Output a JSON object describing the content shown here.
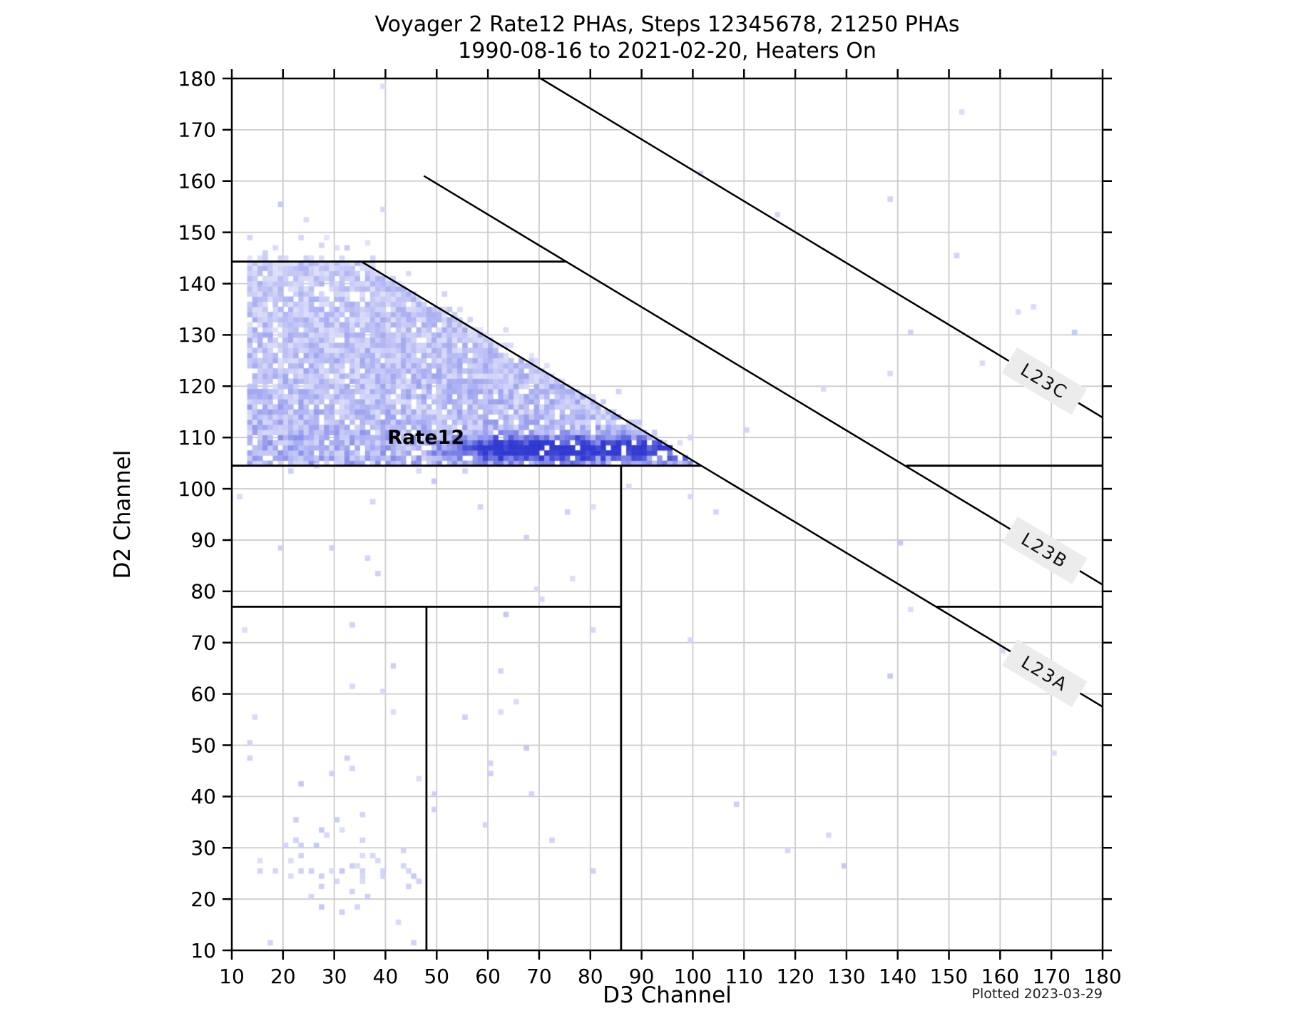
{
  "chart_data": {
    "type": "heatmap",
    "title_line1": "Voyager 2 Rate12 PHAs, Steps 12345678, 21250 PHAs",
    "title_line2": "1990-08-16 to 2021-02-20, Heaters On",
    "xlabel": "D3 Channel",
    "ylabel": "D2 Channel",
    "credit": "Plotted 2023-03-29",
    "annotation": {
      "text": "Rate12",
      "x": 47.9,
      "y": 110.1
    },
    "x_range": [
      10,
      180
    ],
    "y_range": [
      10,
      180
    ],
    "x_ticks": [
      10,
      20,
      30,
      40,
      50,
      60,
      70,
      80,
      90,
      100,
      110,
      120,
      130,
      140,
      150,
      160,
      170,
      180
    ],
    "y_ticks": [
      10,
      20,
      30,
      40,
      50,
      60,
      70,
      80,
      90,
      100,
      110,
      120,
      130,
      140,
      150,
      160,
      170,
      180
    ],
    "grid": true,
    "legend": "none",
    "colors": {
      "grid": "#cccccc",
      "spine": "#000000",
      "region_line": "#000000",
      "label_bg": "#ececec",
      "label_text": "#111111",
      "scatter_base": "#d8daf7",
      "ramp": [
        [
          236,
          237,
          252
        ],
        [
          158,
          164,
          240
        ],
        [
          34,
          44,
          206
        ]
      ]
    },
    "region_segments": [
      {
        "name": "upper-left-horizontal",
        "x1": 10,
        "y1": 144.3,
        "x2": 75.3,
        "y2": 144.3
      },
      {
        "name": "mid-left-horizontal",
        "x1": 10,
        "y1": 104.5,
        "x2": 101.6,
        "y2": 104.5
      },
      {
        "name": "mid-right-horizontal",
        "x1": 141.7,
        "y1": 104.5,
        "x2": 180,
        "y2": 104.5
      },
      {
        "name": "low-left-horizontal",
        "x1": 10,
        "y1": 77,
        "x2": 86,
        "y2": 77
      },
      {
        "name": "low-right-horizontal",
        "x1": 147.5,
        "y1": 77,
        "x2": 180,
        "y2": 77
      },
      {
        "name": "vertical-48",
        "x1": 48,
        "y1": 10,
        "x2": 48,
        "y2": 77
      },
      {
        "name": "vertical-86",
        "x1": 86,
        "y1": 10,
        "x2": 86,
        "y2": 104.5
      }
    ],
    "branch_lines": [
      {
        "label": "L23C",
        "x1": 70.3,
        "y1": 180,
        "x2": 180,
        "y2": 113.9,
        "label_x": 168.6,
        "label_y": 121,
        "label_angle_deg": 31
      },
      {
        "label": "L23B",
        "x1": 47.5,
        "y1": 161,
        "x2": 180,
        "y2": 81.3,
        "label_x": 168.7,
        "label_y": 88,
        "label_angle_deg": 31
      },
      {
        "label": "L23A",
        "x1": 35.3,
        "y1": 144.3,
        "x2": 180,
        "y2": 57.5,
        "label_x": 168.7,
        "label_y": 64,
        "label_angle_deg": 31
      }
    ],
    "histogram_region": {
      "comment_visible_structure": "dense 1-channel-bin 2D histogram, x 13-100, y 104.5-144.3, clipped above by line through (35.3,144.3) slope -0.6, sparse fringe above edges, dark ridge near y=108 for x 55-98, tip at (100,104.5)",
      "x_min": 13,
      "x_max": 100,
      "y_min": 104.5,
      "y_max": 144.3,
      "diag_x0": 35.3,
      "diag_y0": 144.3,
      "diag_slope": -0.6,
      "ridge_y": 107.8,
      "ridge_x_start": 48,
      "fill_probability": 0.9,
      "seed": 20230329
    },
    "scatter_points": [
      [
        39,
        178
      ],
      [
        152,
        173
      ],
      [
        101,
        161
      ],
      [
        138,
        156
      ],
      [
        19,
        155
      ],
      [
        39,
        154
      ],
      [
        116,
        153
      ],
      [
        24,
        152
      ],
      [
        27,
        147
      ],
      [
        151,
        145
      ],
      [
        166,
        135
      ],
      [
        163,
        134
      ],
      [
        142,
        130
      ],
      [
        174,
        130
      ],
      [
        156,
        124
      ],
      [
        138,
        122
      ],
      [
        125,
        119
      ],
      [
        110,
        111
      ],
      [
        26,
        104
      ],
      [
        21,
        103
      ],
      [
        46,
        103
      ],
      [
        55,
        103
      ],
      [
        49,
        101
      ],
      [
        87,
        100
      ],
      [
        11,
        98
      ],
      [
        99,
        98
      ],
      [
        37,
        97
      ],
      [
        58,
        96
      ],
      [
        80,
        96
      ],
      [
        75,
        95
      ],
      [
        104,
        95
      ],
      [
        140,
        89
      ],
      [
        19,
        88
      ],
      [
        29,
        88
      ],
      [
        36,
        86
      ],
      [
        67,
        90
      ],
      [
        38,
        83
      ],
      [
        76,
        82
      ],
      [
        69,
        80
      ],
      [
        70,
        78
      ],
      [
        63,
        75
      ],
      [
        142,
        76
      ],
      [
        12,
        72
      ],
      [
        33,
        73
      ],
      [
        80,
        72
      ],
      [
        99,
        70
      ],
      [
        160,
        68
      ],
      [
        41,
        65
      ],
      [
        62,
        64
      ],
      [
        138,
        63
      ],
      [
        33,
        61
      ],
      [
        39,
        60
      ],
      [
        65,
        58
      ],
      [
        41,
        56
      ],
      [
        55,
        55
      ],
      [
        14,
        55
      ],
      [
        62,
        56
      ],
      [
        13,
        50
      ],
      [
        67,
        49
      ],
      [
        170,
        48
      ],
      [
        13,
        47
      ],
      [
        32,
        47
      ],
      [
        33,
        45
      ],
      [
        29,
        44
      ],
      [
        60,
        46
      ],
      [
        60,
        44
      ],
      [
        46,
        43
      ],
      [
        23,
        42
      ],
      [
        68,
        40
      ],
      [
        49,
        40
      ],
      [
        108,
        38
      ],
      [
        49,
        37
      ],
      [
        35,
        36
      ],
      [
        22,
        35
      ],
      [
        30,
        35
      ],
      [
        59,
        34
      ],
      [
        27,
        33
      ],
      [
        31,
        33
      ],
      [
        28,
        32
      ],
      [
        126,
        32
      ],
      [
        72,
        31
      ],
      [
        35,
        31
      ],
      [
        22,
        31
      ],
      [
        23,
        30
      ],
      [
        20,
        30
      ],
      [
        26,
        30
      ],
      [
        118,
        29
      ],
      [
        43,
        29
      ],
      [
        23,
        28
      ],
      [
        37,
        28
      ],
      [
        38,
        27
      ],
      [
        35,
        28
      ],
      [
        15,
        27
      ],
      [
        21,
        27
      ],
      [
        129,
        26
      ],
      [
        33,
        26
      ],
      [
        43,
        26
      ],
      [
        34,
        26
      ],
      [
        15,
        25
      ],
      [
        18,
        25
      ],
      [
        23,
        25
      ],
      [
        25,
        25
      ],
      [
        29,
        25
      ],
      [
        31,
        25
      ],
      [
        35,
        25
      ],
      [
        39,
        25
      ],
      [
        44,
        25
      ],
      [
        80,
        25
      ],
      [
        21,
        24
      ],
      [
        27,
        24
      ],
      [
        35,
        24
      ],
      [
        39,
        24
      ],
      [
        45,
        24
      ],
      [
        30,
        23
      ],
      [
        35,
        23
      ],
      [
        46,
        23
      ],
      [
        27,
        22
      ],
      [
        44,
        22
      ],
      [
        33,
        21
      ],
      [
        36,
        20
      ],
      [
        25,
        20
      ],
      [
        27,
        18
      ],
      [
        31,
        17
      ],
      [
        34,
        18
      ],
      [
        42,
        15
      ],
      [
        17,
        11
      ],
      [
        45,
        11
      ]
    ]
  }
}
